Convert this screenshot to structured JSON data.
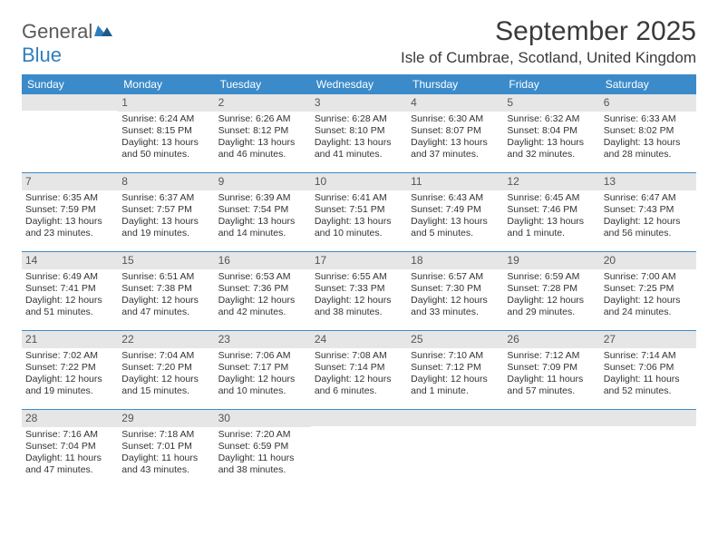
{
  "logo": {
    "general": "General",
    "blue": "Blue"
  },
  "header": {
    "title": "September 2025",
    "location": "Isle of Cumbrae, Scotland, United Kingdom"
  },
  "colors": {
    "header_bg": "#3b8bca",
    "header_text": "#ffffff",
    "daynum_bg": "#e6e6e6",
    "border": "#3b8bca",
    "text": "#333333",
    "logo_gray": "#5a5a5a",
    "logo_blue": "#2f7fbf"
  },
  "dayNames": [
    "Sunday",
    "Monday",
    "Tuesday",
    "Wednesday",
    "Thursday",
    "Friday",
    "Saturday"
  ],
  "weeks": [
    [
      {
        "day": "",
        "lines": []
      },
      {
        "day": "1",
        "lines": [
          "Sunrise: 6:24 AM",
          "Sunset: 8:15 PM",
          "Daylight: 13 hours",
          "and 50 minutes."
        ]
      },
      {
        "day": "2",
        "lines": [
          "Sunrise: 6:26 AM",
          "Sunset: 8:12 PM",
          "Daylight: 13 hours",
          "and 46 minutes."
        ]
      },
      {
        "day": "3",
        "lines": [
          "Sunrise: 6:28 AM",
          "Sunset: 8:10 PM",
          "Daylight: 13 hours",
          "and 41 minutes."
        ]
      },
      {
        "day": "4",
        "lines": [
          "Sunrise: 6:30 AM",
          "Sunset: 8:07 PM",
          "Daylight: 13 hours",
          "and 37 minutes."
        ]
      },
      {
        "day": "5",
        "lines": [
          "Sunrise: 6:32 AM",
          "Sunset: 8:04 PM",
          "Daylight: 13 hours",
          "and 32 minutes."
        ]
      },
      {
        "day": "6",
        "lines": [
          "Sunrise: 6:33 AM",
          "Sunset: 8:02 PM",
          "Daylight: 13 hours",
          "and 28 minutes."
        ]
      }
    ],
    [
      {
        "day": "7",
        "lines": [
          "Sunrise: 6:35 AM",
          "Sunset: 7:59 PM",
          "Daylight: 13 hours",
          "and 23 minutes."
        ]
      },
      {
        "day": "8",
        "lines": [
          "Sunrise: 6:37 AM",
          "Sunset: 7:57 PM",
          "Daylight: 13 hours",
          "and 19 minutes."
        ]
      },
      {
        "day": "9",
        "lines": [
          "Sunrise: 6:39 AM",
          "Sunset: 7:54 PM",
          "Daylight: 13 hours",
          "and 14 minutes."
        ]
      },
      {
        "day": "10",
        "lines": [
          "Sunrise: 6:41 AM",
          "Sunset: 7:51 PM",
          "Daylight: 13 hours",
          "and 10 minutes."
        ]
      },
      {
        "day": "11",
        "lines": [
          "Sunrise: 6:43 AM",
          "Sunset: 7:49 PM",
          "Daylight: 13 hours",
          "and 5 minutes."
        ]
      },
      {
        "day": "12",
        "lines": [
          "Sunrise: 6:45 AM",
          "Sunset: 7:46 PM",
          "Daylight: 13 hours",
          "and 1 minute."
        ]
      },
      {
        "day": "13",
        "lines": [
          "Sunrise: 6:47 AM",
          "Sunset: 7:43 PM",
          "Daylight: 12 hours",
          "and 56 minutes."
        ]
      }
    ],
    [
      {
        "day": "14",
        "lines": [
          "Sunrise: 6:49 AM",
          "Sunset: 7:41 PM",
          "Daylight: 12 hours",
          "and 51 minutes."
        ]
      },
      {
        "day": "15",
        "lines": [
          "Sunrise: 6:51 AM",
          "Sunset: 7:38 PM",
          "Daylight: 12 hours",
          "and 47 minutes."
        ]
      },
      {
        "day": "16",
        "lines": [
          "Sunrise: 6:53 AM",
          "Sunset: 7:36 PM",
          "Daylight: 12 hours",
          "and 42 minutes."
        ]
      },
      {
        "day": "17",
        "lines": [
          "Sunrise: 6:55 AM",
          "Sunset: 7:33 PM",
          "Daylight: 12 hours",
          "and 38 minutes."
        ]
      },
      {
        "day": "18",
        "lines": [
          "Sunrise: 6:57 AM",
          "Sunset: 7:30 PM",
          "Daylight: 12 hours",
          "and 33 minutes."
        ]
      },
      {
        "day": "19",
        "lines": [
          "Sunrise: 6:59 AM",
          "Sunset: 7:28 PM",
          "Daylight: 12 hours",
          "and 29 minutes."
        ]
      },
      {
        "day": "20",
        "lines": [
          "Sunrise: 7:00 AM",
          "Sunset: 7:25 PM",
          "Daylight: 12 hours",
          "and 24 minutes."
        ]
      }
    ],
    [
      {
        "day": "21",
        "lines": [
          "Sunrise: 7:02 AM",
          "Sunset: 7:22 PM",
          "Daylight: 12 hours",
          "and 19 minutes."
        ]
      },
      {
        "day": "22",
        "lines": [
          "Sunrise: 7:04 AM",
          "Sunset: 7:20 PM",
          "Daylight: 12 hours",
          "and 15 minutes."
        ]
      },
      {
        "day": "23",
        "lines": [
          "Sunrise: 7:06 AM",
          "Sunset: 7:17 PM",
          "Daylight: 12 hours",
          "and 10 minutes."
        ]
      },
      {
        "day": "24",
        "lines": [
          "Sunrise: 7:08 AM",
          "Sunset: 7:14 PM",
          "Daylight: 12 hours",
          "and 6 minutes."
        ]
      },
      {
        "day": "25",
        "lines": [
          "Sunrise: 7:10 AM",
          "Sunset: 7:12 PM",
          "Daylight: 12 hours",
          "and 1 minute."
        ]
      },
      {
        "day": "26",
        "lines": [
          "Sunrise: 7:12 AM",
          "Sunset: 7:09 PM",
          "Daylight: 11 hours",
          "and 57 minutes."
        ]
      },
      {
        "day": "27",
        "lines": [
          "Sunrise: 7:14 AM",
          "Sunset: 7:06 PM",
          "Daylight: 11 hours",
          "and 52 minutes."
        ]
      }
    ],
    [
      {
        "day": "28",
        "lines": [
          "Sunrise: 7:16 AM",
          "Sunset: 7:04 PM",
          "Daylight: 11 hours",
          "and 47 minutes."
        ]
      },
      {
        "day": "29",
        "lines": [
          "Sunrise: 7:18 AM",
          "Sunset: 7:01 PM",
          "Daylight: 11 hours",
          "and 43 minutes."
        ]
      },
      {
        "day": "30",
        "lines": [
          "Sunrise: 7:20 AM",
          "Sunset: 6:59 PM",
          "Daylight: 11 hours",
          "and 38 minutes."
        ]
      },
      {
        "day": "",
        "lines": []
      },
      {
        "day": "",
        "lines": []
      },
      {
        "day": "",
        "lines": []
      },
      {
        "day": "",
        "lines": []
      }
    ]
  ]
}
